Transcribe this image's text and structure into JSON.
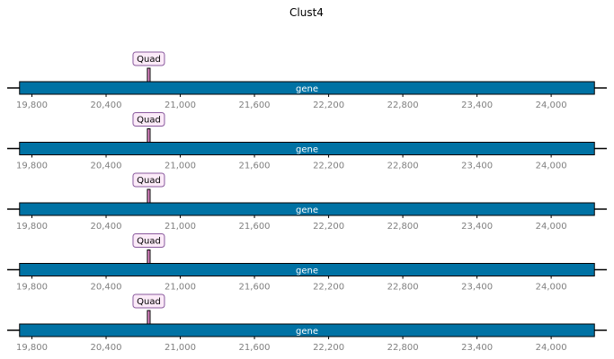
{
  "title": "Clust4",
  "colors": {
    "gene_fill": "#0072a4",
    "gene_stroke": "#000000",
    "feature_fill": "#e58aca",
    "label_fill": "#fbeaf8",
    "label_stroke": "#8a5a9e",
    "tick_text": "#7f7f7f"
  },
  "axis": {
    "start": 19600,
    "end": 24450,
    "ticks": [
      {
        "value": 19800,
        "label": "19,800"
      },
      {
        "value": 20400,
        "label": "20,400"
      },
      {
        "value": 21000,
        "label": "21,000"
      },
      {
        "value": 21600,
        "label": "21,600"
      },
      {
        "value": 22200,
        "label": "22,200"
      },
      {
        "value": 22800,
        "label": "22,800"
      },
      {
        "value": 23400,
        "label": "23,400"
      },
      {
        "value": 24000,
        "label": "24,000"
      }
    ]
  },
  "tracks": [
    {
      "gene": {
        "label": "gene",
        "start": 19700,
        "end": 24350
      },
      "feature": {
        "label": "Quad",
        "start": 20735,
        "end": 20755
      }
    },
    {
      "gene": {
        "label": "gene",
        "start": 19700,
        "end": 24350
      },
      "feature": {
        "label": "Quad",
        "start": 20735,
        "end": 20755
      }
    },
    {
      "gene": {
        "label": "gene",
        "start": 19700,
        "end": 24350
      },
      "feature": {
        "label": "Quad",
        "start": 20735,
        "end": 20755
      }
    },
    {
      "gene": {
        "label": "gene",
        "start": 19700,
        "end": 24350
      },
      "feature": {
        "label": "Quad",
        "start": 20735,
        "end": 20755
      }
    },
    {
      "gene": {
        "label": "gene",
        "start": 19700,
        "end": 24350
      },
      "feature": {
        "label": "Quad",
        "start": 20735,
        "end": 20755
      }
    }
  ]
}
